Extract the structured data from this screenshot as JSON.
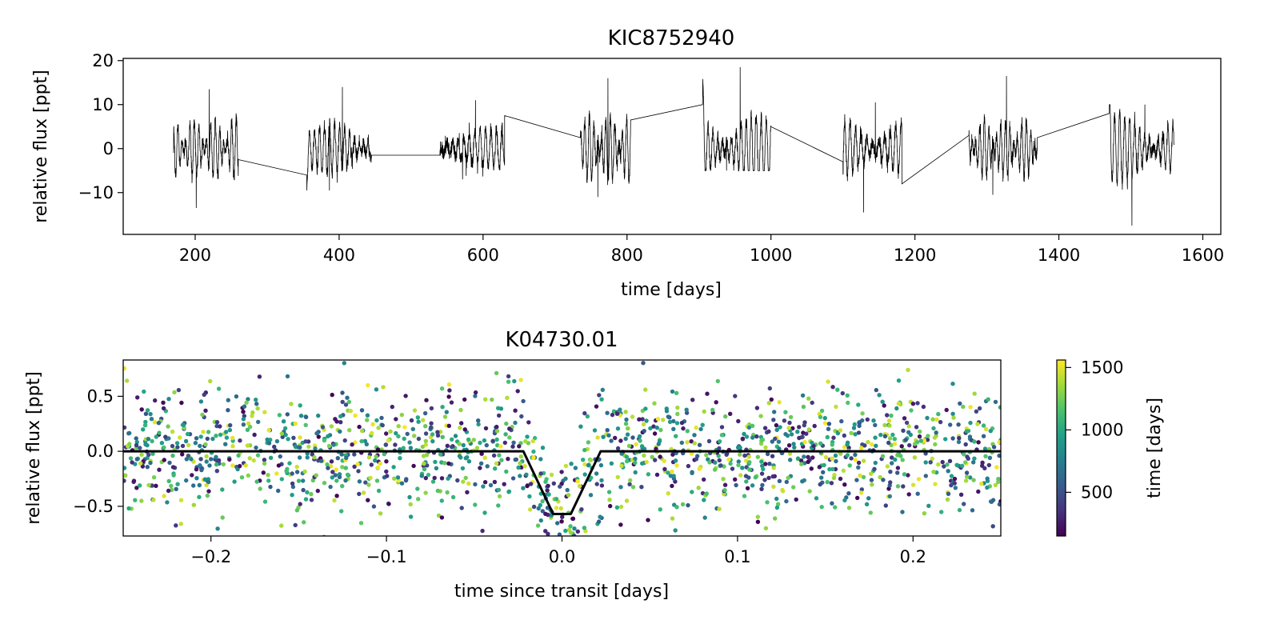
{
  "chart_data": [
    {
      "type": "line",
      "title": "KIC8752940",
      "xlabel": "time [days]",
      "ylabel": "relative flux [ppt]",
      "xlim": [
        100,
        1625
      ],
      "ylim": [
        -19.5,
        20.5
      ],
      "xticks": [
        200,
        400,
        600,
        800,
        1000,
        1200,
        1400,
        1600
      ],
      "yticks": [
        -10,
        0,
        10,
        20
      ],
      "xtick_labels": [
        "200",
        "400",
        "600",
        "800",
        "1000",
        "1200",
        "1400",
        "1600"
      ],
      "ytick_labels": [
        "−10",
        "0",
        "10",
        "20"
      ],
      "line_color": "#000000",
      "segments": [
        {
          "x0": 170,
          "x1": 260,
          "amp": 6,
          "ymax": 13.5,
          "ymin": -13.5,
          "start": -1,
          "end": -2.5
        },
        {
          "x0": 355,
          "x1": 445,
          "amp": 5,
          "ymax": 14,
          "ymin": -9.5,
          "start": -6,
          "end": -1.5
        },
        {
          "x0": 540,
          "x1": 630,
          "amp": 4,
          "ymax": 11,
          "ymin": -7,
          "start": -1.5,
          "end": 7.5
        },
        {
          "x0": 735,
          "x1": 805,
          "amp": 7,
          "ymax": 16,
          "ymin": -11,
          "start": 2.5,
          "end": 6.5
        },
        {
          "x0": 905,
          "x1": 1000,
          "amp": 7,
          "ymax": 18.5,
          "ymin": -5,
          "start": 10,
          "end": 5
        },
        {
          "x0": 1100,
          "x1": 1182,
          "amp": 7,
          "ymax": 10.5,
          "ymin": -14.5,
          "start": -3,
          "end": -8
        },
        {
          "x0": 1275,
          "x1": 1370,
          "amp": 6,
          "ymax": 16.5,
          "ymin": -10.5,
          "start": 3,
          "end": 2.5
        },
        {
          "x0": 1470,
          "x1": 1560,
          "amp": 7,
          "ymax": 10,
          "ymin": -17.5,
          "start": 8,
          "end": 1
        }
      ]
    },
    {
      "type": "scatter",
      "title": "K04730.01",
      "xlabel": "time since transit [days]",
      "ylabel": "relative flux [ppt]",
      "xlim": [
        -0.25,
        0.25
      ],
      "ylim": [
        -0.77,
        0.83
      ],
      "xticks": [
        -0.2,
        -0.1,
        0.0,
        0.1,
        0.2
      ],
      "yticks": [
        -0.5,
        0.0,
        0.5
      ],
      "xtick_labels": [
        "−0.2",
        "−0.1",
        "0.0",
        "0.1",
        "0.2"
      ],
      "ytick_labels": [
        "−0.5",
        "0.0",
        "0.5"
      ],
      "transit_model": {
        "x": [
          -0.25,
          -0.022,
          -0.005,
          0.005,
          0.022,
          0.25
        ],
        "y": [
          0.0,
          0.0,
          -0.57,
          -0.57,
          0.0,
          0.0
        ],
        "color": "#000000"
      },
      "scatter": {
        "n_points": 1600,
        "x_range": [
          -0.25,
          0.25
        ],
        "noise_sd": 0.28,
        "time_range": [
          150,
          1560
        ]
      },
      "colorbar": {
        "label": "time [days]",
        "range": [
          150,
          1560
        ],
        "ticks": [
          500,
          1000,
          1500
        ],
        "tick_labels": [
          "500",
          "1000",
          "1500"
        ],
        "colormap": "viridis",
        "colors": [
          "#440154",
          "#46327e",
          "#365c8d",
          "#277f8e",
          "#1fa187",
          "#4ac16d",
          "#a0da39",
          "#fde725"
        ]
      }
    }
  ]
}
